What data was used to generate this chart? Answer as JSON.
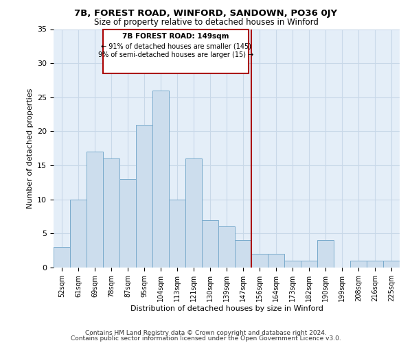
{
  "title1": "7B, FOREST ROAD, WINFORD, SANDOWN, PO36 0JY",
  "title2": "Size of property relative to detached houses in Winford",
  "xlabel": "Distribution of detached houses by size in Winford",
  "ylabel": "Number of detached properties",
  "categories": [
    "52sqm",
    "61sqm",
    "69sqm",
    "78sqm",
    "87sqm",
    "95sqm",
    "104sqm",
    "113sqm",
    "121sqm",
    "130sqm",
    "139sqm",
    "147sqm",
    "156sqm",
    "164sqm",
    "173sqm",
    "182sqm",
    "190sqm",
    "199sqm",
    "208sqm",
    "216sqm",
    "225sqm"
  ],
  "values": [
    3,
    10,
    17,
    16,
    13,
    21,
    26,
    10,
    16,
    7,
    6,
    4,
    2,
    2,
    1,
    1,
    4,
    0,
    1,
    1,
    1
  ],
  "bar_color": "#ccdded",
  "bar_edge_color": "#7aabcc",
  "subject_line_index": 11,
  "annotation_title": "7B FOREST ROAD: 149sqm",
  "annotation_line1": "← 91% of detached houses are smaller (145)",
  "annotation_line2": "9% of semi-detached houses are larger (15) →",
  "vline_color": "#aa0000",
  "annotation_box_edgecolor": "#aa0000",
  "ylim": [
    0,
    35
  ],
  "yticks": [
    0,
    5,
    10,
    15,
    20,
    25,
    30,
    35
  ],
  "grid_color": "#c8d8e8",
  "background_color": "#e4eef8",
  "footer_line1": "Contains HM Land Registry data © Crown copyright and database right 2024.",
  "footer_line2": "Contains public sector information licensed under the Open Government Licence v3.0.",
  "footer_fontsize": 6.5,
  "title1_fontsize": 9.5,
  "title2_fontsize": 8.5
}
